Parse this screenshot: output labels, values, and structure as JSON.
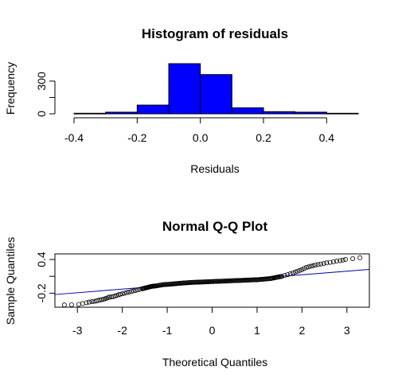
{
  "chart_data": [
    {
      "type": "histogram",
      "title": "Histogram of residuals",
      "xlabel": "Residuals",
      "ylabel": "Frequency",
      "bar_color": "#0000ff",
      "bin_edges": [
        -0.4,
        -0.3,
        -0.2,
        -0.1,
        0.0,
        0.1,
        0.2,
        0.3,
        0.4,
        0.5
      ],
      "values": [
        5,
        15,
        80,
        460,
        360,
        55,
        20,
        15,
        5
      ],
      "xlim": [
        -0.4,
        0.5
      ],
      "ylim": [
        0,
        460
      ],
      "xticks": [
        {
          "value": -0.4,
          "label": "-0.4"
        },
        {
          "value": -0.2,
          "label": "-0.2"
        },
        {
          "value": 0.0,
          "label": "0.0"
        },
        {
          "value": 0.2,
          "label": "0.2"
        },
        {
          "value": 0.4,
          "label": "0.4"
        }
      ],
      "yticks": [
        {
          "value": 0,
          "label": "0"
        },
        {
          "value": 150,
          "label": ""
        },
        {
          "value": 300,
          "label": "300"
        }
      ]
    },
    {
      "type": "scatter",
      "title": "Normal Q-Q Plot",
      "xlabel": "Theoretical Quantiles",
      "ylabel": "Sample Quantiles",
      "point_color": "#000000",
      "line_color": "#0000aa",
      "xlim": [
        -3.5,
        3.5
      ],
      "ylim": [
        -0.45,
        0.5
      ],
      "xticks": [
        {
          "value": -3,
          "label": "-3"
        },
        {
          "value": -2,
          "label": "-2"
        },
        {
          "value": -1,
          "label": "-1"
        },
        {
          "value": 0,
          "label": "0"
        },
        {
          "value": 1,
          "label": "1"
        },
        {
          "value": 2,
          "label": "2"
        },
        {
          "value": 3,
          "label": "3"
        }
      ],
      "yticks": [
        {
          "value": -0.2,
          "label": "-0.2"
        },
        {
          "value": 0.1,
          "label": ""
        },
        {
          "value": 0.4,
          "label": "0.4"
        }
      ],
      "reference_line": {
        "intercept": 0.0,
        "slope": 0.064
      },
      "points": [
        [
          -3.29,
          -0.41
        ],
        [
          -2.97,
          -0.4
        ],
        [
          -2.8,
          -0.37
        ],
        [
          -2.68,
          -0.35
        ],
        [
          -2.58,
          -0.34
        ],
        [
          -2.5,
          -0.32
        ],
        [
          -2.42,
          -0.31
        ],
        [
          -2.35,
          -0.29
        ],
        [
          -2.28,
          -0.27
        ],
        [
          -2.2,
          -0.26
        ],
        [
          -2.12,
          -0.24
        ],
        [
          -2.05,
          -0.22
        ],
        [
          -1.95,
          -0.2
        ],
        [
          -1.85,
          -0.18
        ],
        [
          -1.75,
          -0.16
        ],
        [
          -1.65,
          -0.14
        ],
        [
          -1.55,
          -0.12
        ],
        [
          -1.45,
          -0.1
        ],
        [
          -1.35,
          -0.08
        ],
        [
          -1.25,
          -0.07
        ],
        [
          -1.1,
          -0.05
        ],
        [
          -0.95,
          -0.04
        ],
        [
          -0.8,
          -0.03
        ],
        [
          -0.65,
          -0.02
        ],
        [
          -0.5,
          -0.01
        ],
        [
          -0.35,
          -0.005
        ],
        [
          -0.2,
          0.0
        ],
        [
          -0.05,
          0.005
        ],
        [
          0.1,
          0.01
        ],
        [
          0.25,
          0.015
        ],
        [
          0.4,
          0.02
        ],
        [
          0.55,
          0.025
        ],
        [
          0.7,
          0.03
        ],
        [
          0.85,
          0.035
        ],
        [
          1.0,
          0.04
        ],
        [
          1.15,
          0.05
        ],
        [
          1.3,
          0.06
        ],
        [
          1.42,
          0.08
        ],
        [
          1.55,
          0.1
        ],
        [
          1.68,
          0.13
        ],
        [
          1.8,
          0.16
        ],
        [
          1.9,
          0.19
        ],
        [
          2.0,
          0.22
        ],
        [
          2.1,
          0.26
        ],
        [
          2.2,
          0.28
        ],
        [
          2.3,
          0.3
        ],
        [
          2.42,
          0.32
        ],
        [
          2.55,
          0.34
        ],
        [
          2.7,
          0.36
        ],
        [
          2.85,
          0.38
        ],
        [
          2.97,
          0.4
        ],
        [
          3.29,
          0.43
        ]
      ]
    }
  ]
}
